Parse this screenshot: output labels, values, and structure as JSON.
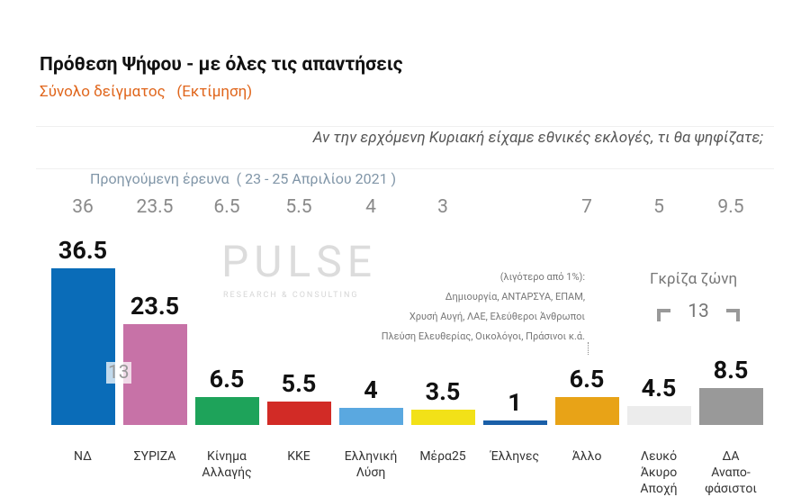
{
  "chart_data": {
    "type": "bar",
    "title": "Πρόθεση Ψήφου - με όλες τις απαντήσεις",
    "subtitle": "Σύνολο δείγματος   (Εκτίμηση)",
    "question": "Αν την ερχόμενη Κυριακή είχαμε εθνικές εκλογές, τι θα ψηφίζατε;",
    "previous_label": "Προηγούμενη έρευνα  ( 23 - 25 Απριλίου 2021 )",
    "categories": [
      "ΝΔ",
      "ΣΥΡΙΖΑ",
      "Κίνημα\nΑλλαγής",
      "ΚΚΕ",
      "Ελληνική\nΛύση",
      "Μέρα25",
      "Έλληνες",
      "Άλλο",
      "Λευκό\nΆκυρο\nΑποχή",
      "ΔΑ\nΑναπο-\nφάσιστοι"
    ],
    "values": [
      36.5,
      23.5,
      6.5,
      5.5,
      4,
      3.5,
      1,
      6.5,
      4.5,
      8.5
    ],
    "previous_values": [
      36,
      23.5,
      6.5,
      5.5,
      4,
      3,
      null,
      7,
      5,
      9.5
    ],
    "colors": [
      "#0a6cb8",
      "#c772a7",
      "#1ea35a",
      "#d22b26",
      "#5aa8e0",
      "#f2e118",
      "#1a5fa8",
      "#e8a317",
      "#ececec",
      "#999999"
    ],
    "lead_gap": 13,
    "note": [
      "(λιγότερο από 1%):",
      "Δημιουργία, ΑΝΤΑΡΣΥΑ, ΕΠΑΜ,",
      "Χρυσή Αυγή, ΛΑΕ, Ελεύθεροι Άνθρωποι",
      "Πλεύση Ελευθερίας, Οικολόγοι, Πράσινοι κ.ά."
    ],
    "gray_zone": {
      "label": "Γκρίζα ζώνη",
      "value": 13
    },
    "watermark": [
      "PULSE",
      "RESEARCH & CONSULTING"
    ]
  }
}
